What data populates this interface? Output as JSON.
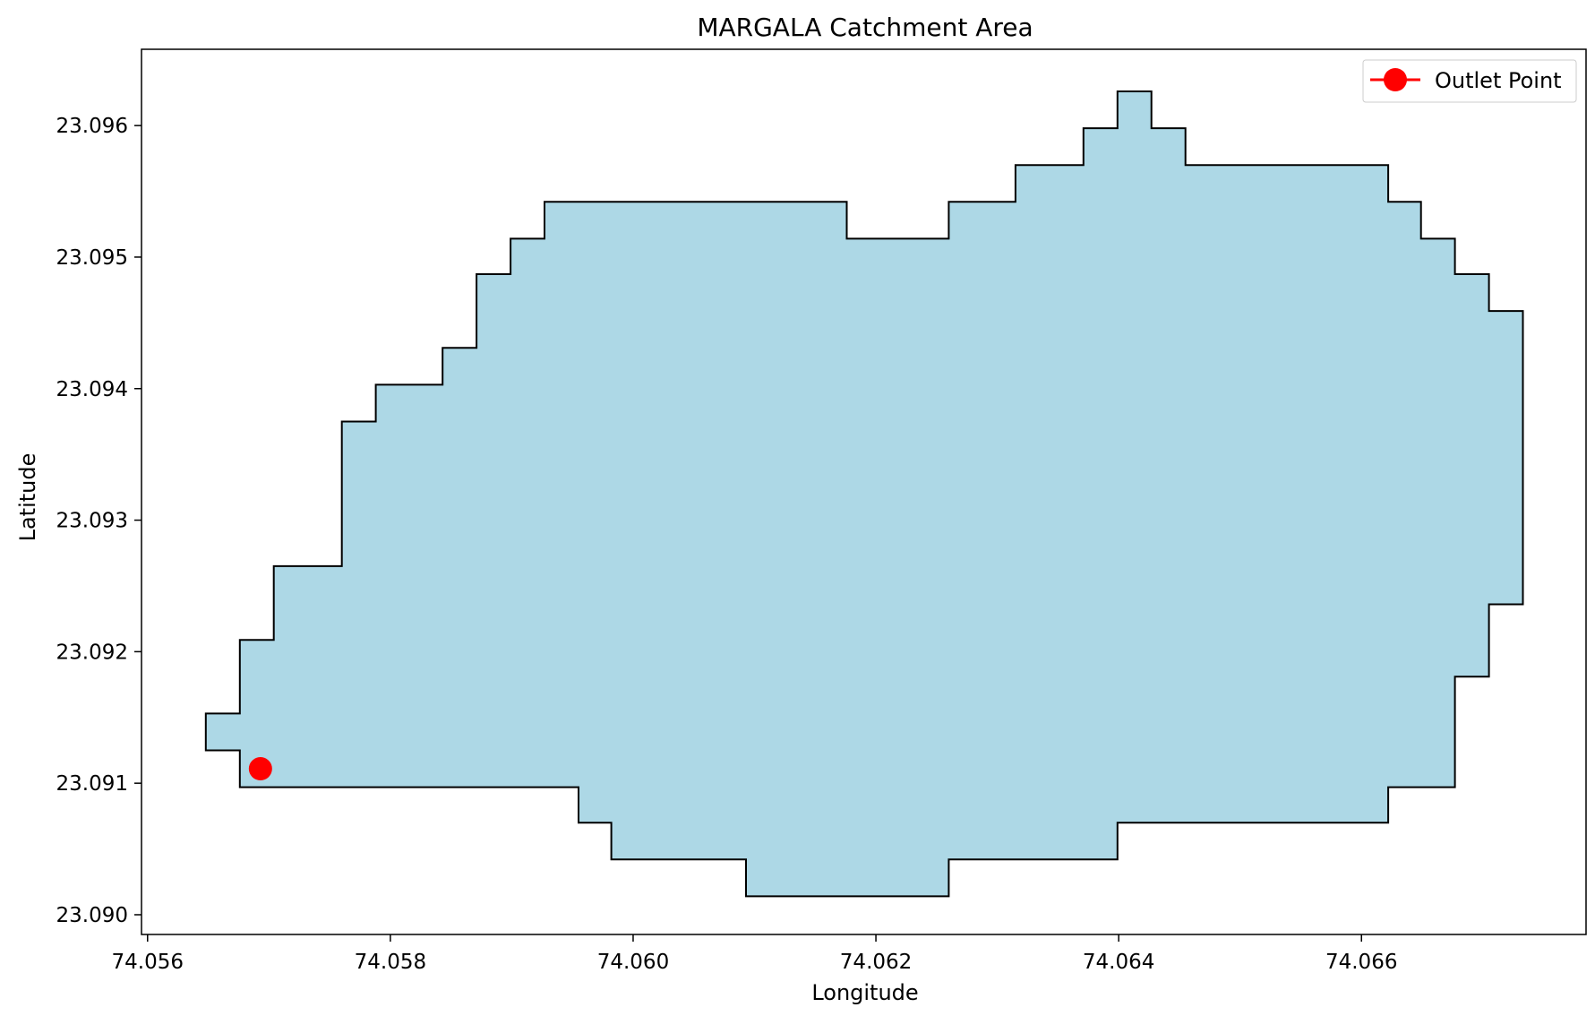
{
  "chart_data": {
    "type": "area",
    "title": "MARGALA Catchment Area",
    "xlabel": "Longitude",
    "ylabel": "Latitude",
    "xlim": [
      74.05595,
      74.06785
    ],
    "ylim": [
      23.08985,
      23.09658
    ],
    "xticks": [
      {
        "value": 74.056,
        "label": "74.056"
      },
      {
        "value": 74.058,
        "label": "74.058"
      },
      {
        "value": 74.06,
        "label": "74.060"
      },
      {
        "value": 74.062,
        "label": "74.062"
      },
      {
        "value": 74.064,
        "label": "74.064"
      },
      {
        "value": 74.066,
        "label": "74.066"
      }
    ],
    "yticks": [
      {
        "value": 23.09,
        "label": "23.090"
      },
      {
        "value": 23.091,
        "label": "23.091"
      },
      {
        "value": 23.092,
        "label": "23.092"
      },
      {
        "value": 23.093,
        "label": "23.093"
      },
      {
        "value": 23.094,
        "label": "23.094"
      },
      {
        "value": 23.095,
        "label": "23.095"
      },
      {
        "value": 23.096,
        "label": "23.096"
      }
    ],
    "grid": false,
    "legend_position": "top-right",
    "catchment": {
      "fill": "#add8e6",
      "edge": "#000000",
      "boundary": [
        [
          74.05676,
          23.09097
        ],
        [
          74.05676,
          23.09125
        ],
        [
          74.05648,
          23.09125
        ],
        [
          74.05648,
          23.09153
        ],
        [
          74.05676,
          23.09153
        ],
        [
          74.05676,
          23.09209
        ],
        [
          74.05704,
          23.09209
        ],
        [
          74.05704,
          23.09265
        ],
        [
          74.0576,
          23.09265
        ],
        [
          74.0576,
          23.09375
        ],
        [
          74.05788,
          23.09375
        ],
        [
          74.05788,
          23.09403
        ],
        [
          74.05843,
          23.09403
        ],
        [
          74.05843,
          23.09431
        ],
        [
          74.05871,
          23.09431
        ],
        [
          74.05871,
          23.09487
        ],
        [
          74.05899,
          23.09487
        ],
        [
          74.05899,
          23.09514
        ],
        [
          74.05927,
          23.09514
        ],
        [
          74.05927,
          23.09542
        ],
        [
          74.06176,
          23.09542
        ],
        [
          74.06176,
          23.09514
        ],
        [
          74.0626,
          23.09514
        ],
        [
          74.0626,
          23.09542
        ],
        [
          74.06315,
          23.09542
        ],
        [
          74.06315,
          23.0957
        ],
        [
          74.06371,
          23.0957
        ],
        [
          74.06371,
          23.09598
        ],
        [
          74.06399,
          23.09598
        ],
        [
          74.06399,
          23.09626
        ],
        [
          74.06427,
          23.09626
        ],
        [
          74.06427,
          23.09598
        ],
        [
          74.06455,
          23.09598
        ],
        [
          74.06455,
          23.0957
        ],
        [
          74.06622,
          23.0957
        ],
        [
          74.06622,
          23.09542
        ],
        [
          74.06649,
          23.09542
        ],
        [
          74.06649,
          23.09514
        ],
        [
          74.06677,
          23.09514
        ],
        [
          74.06677,
          23.09487
        ],
        [
          74.06705,
          23.09487
        ],
        [
          74.06705,
          23.09459
        ],
        [
          74.06733,
          23.09459
        ],
        [
          74.06733,
          23.09236
        ],
        [
          74.06705,
          23.09236
        ],
        [
          74.06705,
          23.09181
        ],
        [
          74.06677,
          23.09181
        ],
        [
          74.06677,
          23.09097
        ],
        [
          74.06622,
          23.09097
        ],
        [
          74.06622,
          23.0907
        ],
        [
          74.06399,
          23.0907
        ],
        [
          74.06399,
          23.09042
        ],
        [
          74.0626,
          23.09042
        ],
        [
          74.0626,
          23.09014
        ],
        [
          74.06093,
          23.09014
        ],
        [
          74.06093,
          23.09042
        ],
        [
          74.05982,
          23.09042
        ],
        [
          74.05982,
          23.0907
        ],
        [
          74.05955,
          23.0907
        ],
        [
          74.05955,
          23.09097
        ]
      ]
    },
    "series": [
      {
        "name": "Outlet Point",
        "x": [
          74.05693
        ],
        "y": [
          23.09111
        ],
        "color": "#ff0000",
        "marker": "circle"
      }
    ]
  }
}
